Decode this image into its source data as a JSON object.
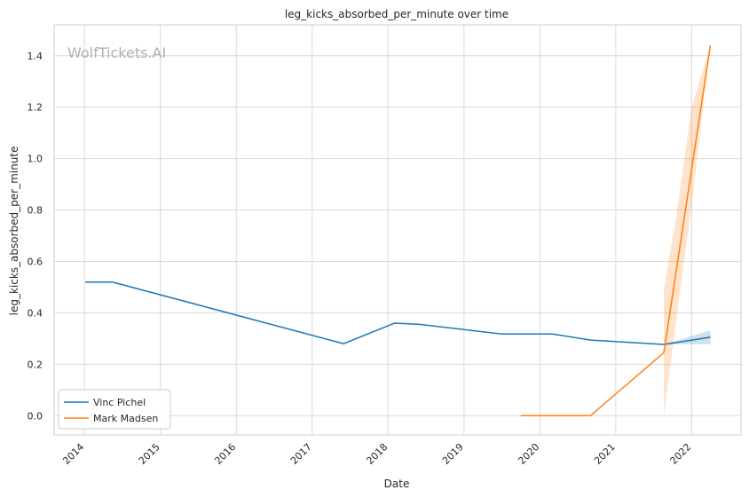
{
  "chart_data": {
    "type": "line",
    "title": "leg_kicks_absorbed_per_minute over time",
    "xlabel": "Date",
    "ylabel": "leg_kicks_absorbed_per_minute",
    "watermark": "WolfTickets.AI",
    "x_ticks": [
      "2014",
      "2015",
      "2016",
      "2017",
      "2018",
      "2019",
      "2020",
      "2021",
      "2022"
    ],
    "y_ticks": [
      "0.0",
      "0.2",
      "0.4",
      "0.6",
      "0.8",
      "1.0",
      "1.2",
      "1.4"
    ],
    "ylim": [
      -0.075,
      1.52
    ],
    "grid": true,
    "legend_position": "lower-left",
    "series": [
      {
        "name": "Vinc Pichel",
        "color": "#1f77b4",
        "points": [
          {
            "date": "2014-01-05",
            "y": 0.52
          },
          {
            "date": "2014-05-15",
            "y": 0.52
          },
          {
            "date": "2017-06-01",
            "y": 0.28
          },
          {
            "date": "2018-02-01",
            "y": 0.36
          },
          {
            "date": "2018-06-01",
            "y": 0.355
          },
          {
            "date": "2019-07-01",
            "y": 0.318
          },
          {
            "date": "2020-03-01",
            "y": 0.318
          },
          {
            "date": "2020-09-01",
            "y": 0.294
          },
          {
            "date": "2021-08-20",
            "y": 0.277
          },
          {
            "date": "2022-04-01",
            "y": 0.305
          }
        ],
        "band": [
          {
            "date": "2021-08-20",
            "low": 0.277,
            "high": 0.277
          },
          {
            "date": "2022-04-01",
            "low": 0.278,
            "high": 0.332
          }
        ]
      },
      {
        "name": "Mark Madsen",
        "color": "#ff7f0e",
        "points": [
          {
            "date": "2019-10-01",
            "y": 0.0
          },
          {
            "date": "2020-09-01",
            "y": 0.0
          },
          {
            "date": "2021-08-20",
            "y": 0.245
          },
          {
            "date": "2022-04-01",
            "y": 1.44
          }
        ],
        "band": [
          {
            "date": "2021-08-20",
            "low": 0.0,
            "high": 0.49
          },
          {
            "date": "2021-10-20",
            "low": 0.38,
            "high": 0.78
          },
          {
            "date": "2022-01-01",
            "low": 0.82,
            "high": 1.2
          },
          {
            "date": "2022-04-01",
            "low": 1.44,
            "high": 1.44
          }
        ]
      }
    ]
  }
}
